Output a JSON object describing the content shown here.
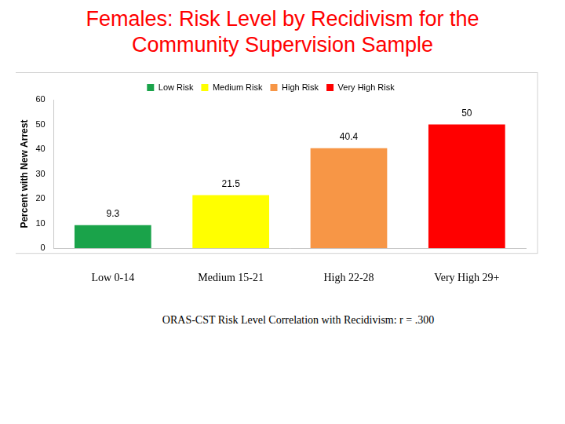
{
  "chart_data": {
    "type": "bar",
    "title": "Females: Risk Level by Recidivism for the Community Supervision Sample",
    "y_label": "Percent with New Arrest",
    "categories": [
      "Low 0-14",
      "Medium 15-21",
      "High 22-28",
      "Very High 29+"
    ],
    "series": [
      {
        "name": "Low Risk",
        "color": "#1aa34a",
        "values": [
          9.3,
          null,
          null,
          null
        ]
      },
      {
        "name": "Medium Risk",
        "color": "#ffff00",
        "values": [
          null,
          21.5,
          null,
          null
        ]
      },
      {
        "name": "High Risk",
        "color": "#f79646",
        "values": [
          null,
          null,
          40.4,
          null
        ]
      },
      {
        "name": "Very High Risk",
        "color": "#ff0000",
        "values": [
          null,
          null,
          null,
          50
        ]
      }
    ],
    "ylim": [
      0,
      60
    ],
    "yticks": [
      0,
      10,
      20,
      30,
      40,
      50,
      60
    ],
    "grid": false,
    "legend": "top",
    "data_labels": true,
    "annotation": "ORAS-CST Risk Level Correlation with Recidivism: r = .300"
  }
}
